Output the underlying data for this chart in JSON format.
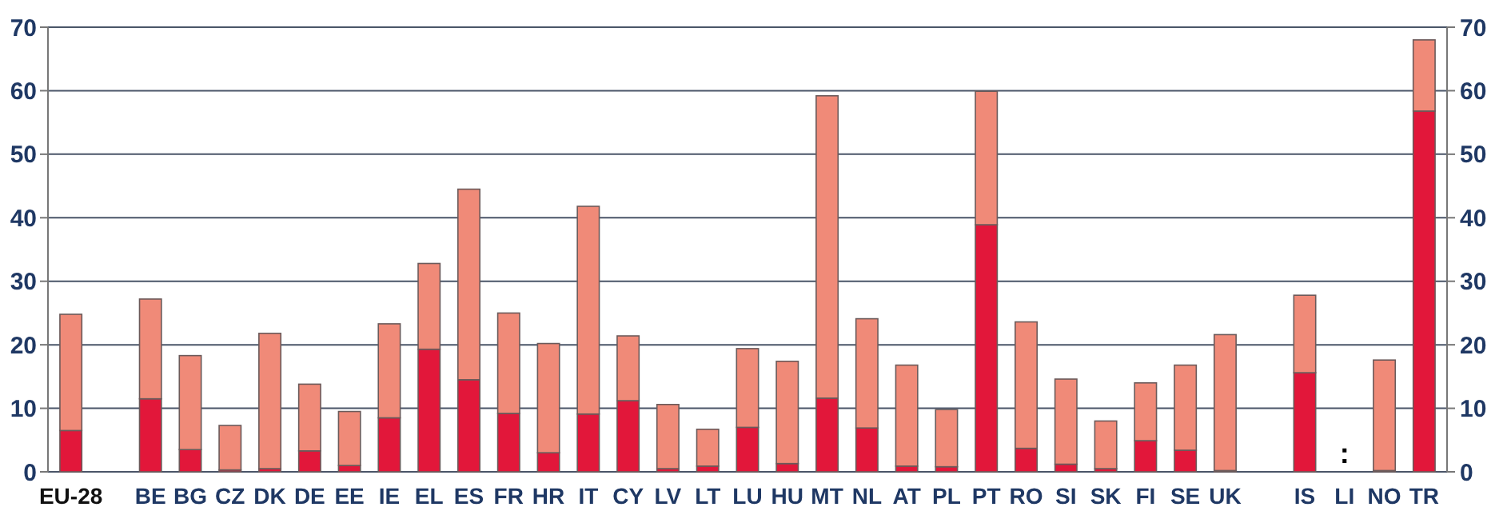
{
  "chart_data": {
    "type": "bar",
    "stacked": true,
    "categories": [
      "EU-28",
      null,
      "BE",
      "BG",
      "CZ",
      "DK",
      "DE",
      "EE",
      "IE",
      "EL",
      "ES",
      "FR",
      "HR",
      "IT",
      "CY",
      "LV",
      "LT",
      "LU",
      "HU",
      "MT",
      "NL",
      "AT",
      "PL",
      "PT",
      "RO",
      "SI",
      "SK",
      "FI",
      "SE",
      "UK",
      null,
      "IS",
      "LI",
      "NO",
      "TR"
    ],
    "series": [
      {
        "color": "#e2173a",
        "values": [
          6.5,
          null,
          11.5,
          3.5,
          0.3,
          0.5,
          3.3,
          1.0,
          8.5,
          19.3,
          14.5,
          9.2,
          3.0,
          9.1,
          11.2,
          0.5,
          0.9,
          7.0,
          1.3,
          11.6,
          6.9,
          0.9,
          0.8,
          38.9,
          3.7,
          1.2,
          0.5,
          4.9,
          3.4,
          0.2,
          null,
          15.6,
          null,
          0.2,
          56.8
        ]
      },
      {
        "color": "#f08a78",
        "values": [
          18.3,
          null,
          15.7,
          14.8,
          7.0,
          21.3,
          10.5,
          8.5,
          14.8,
          13.5,
          30.0,
          15.8,
          17.2,
          32.7,
          10.2,
          10.1,
          5.8,
          12.4,
          16.1,
          47.6,
          17.2,
          15.9,
          9.0,
          21.0,
          19.9,
          13.4,
          7.5,
          9.1,
          13.4,
          21.4,
          null,
          12.2,
          null,
          17.4,
          11.2
        ]
      }
    ],
    "ylim": [
      0,
      70
    ],
    "yticks": [
      0,
      10,
      20,
      30,
      40,
      50,
      60,
      70
    ],
    "y2lim": [
      0,
      70
    ],
    "y2ticks": [
      0,
      10,
      20,
      30,
      40,
      50,
      60,
      70
    ],
    "grid": "y",
    "annotations": [
      ":"
    ]
  }
}
